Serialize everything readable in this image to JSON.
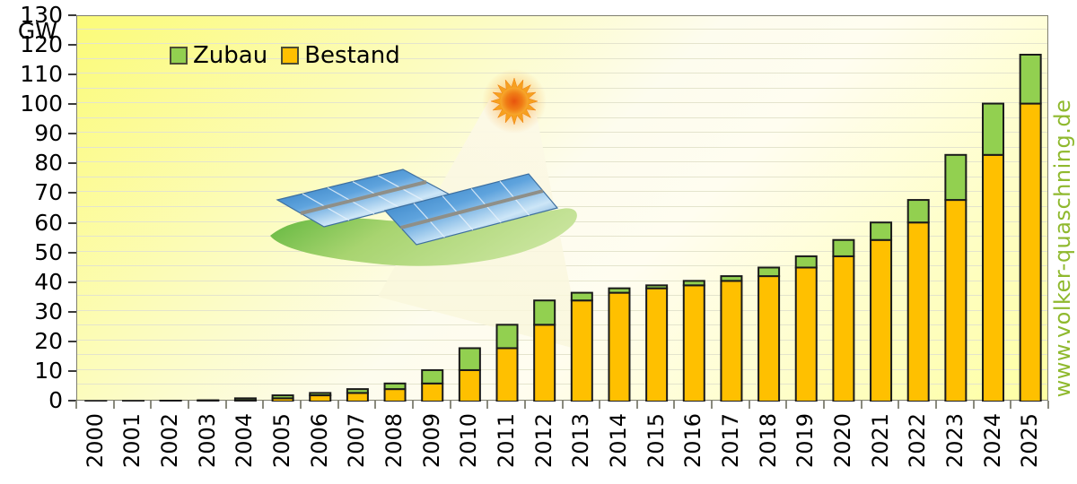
{
  "axis": {
    "unit_label": "GW"
  },
  "legend": [
    {
      "label": "Zubau",
      "color": "#92D050"
    },
    {
      "label": "Bestand",
      "color": "#FFC000"
    }
  ],
  "watermark": {
    "text": "www.volker-quaschning.de",
    "color": "#8FB92E"
  },
  "icons": {
    "sun": "sun-icon",
    "panels": "solar-panels-icon"
  },
  "colors": {
    "bar_border": "#1a1a1a",
    "plot_border": "#7f7f6f",
    "gridline": "#e4e4cd",
    "bestand": "#FFC000",
    "zubau": "#92D050"
  },
  "chart_data": {
    "type": "bar",
    "stacked": true,
    "title": "",
    "xlabel": "",
    "ylabel": "GW",
    "ylim": [
      0,
      130
    ],
    "y_tick_step": 10,
    "gridline_step": 5,
    "grid": true,
    "legend_position": "top-left",
    "x_label_rotation": -90,
    "categories": [
      "2000",
      "2001",
      "2002",
      "2003",
      "2004",
      "2005",
      "2006",
      "2007",
      "2008",
      "2009",
      "2010",
      "2011",
      "2012",
      "2013",
      "2014",
      "2015",
      "2016",
      "2017",
      "2018",
      "2019",
      "2020",
      "2021",
      "2022",
      "2023",
      "2024",
      "2025"
    ],
    "series": [
      {
        "name": "Bestand",
        "color": "#FFC000",
        "values": [
          0.08,
          0.11,
          0.19,
          0.31,
          0.44,
          1.1,
          2.1,
          2.9,
          4.2,
          6.1,
          10.6,
          18.0,
          25.9,
          34.1,
          36.7,
          38.2,
          39.2,
          40.7,
          42.3,
          45.2,
          49.0,
          54.5,
          60.4,
          68.0,
          83.2,
          100.5
        ]
      },
      {
        "name": "Zubau",
        "color": "#92D050",
        "values": [
          0.04,
          0.08,
          0.12,
          0.13,
          0.66,
          1.0,
          0.8,
          1.3,
          1.9,
          4.5,
          7.4,
          7.9,
          8.2,
          2.6,
          1.5,
          1.0,
          1.5,
          1.6,
          2.9,
          3.8,
          5.5,
          5.9,
          7.6,
          15.2,
          17.3,
          16.5
        ]
      }
    ],
    "totals": [
      0.12,
      0.19,
      0.31,
      0.44,
      1.1,
      2.1,
      2.9,
      4.2,
      6.1,
      10.6,
      18.0,
      25.9,
      34.1,
      36.7,
      38.2,
      39.2,
      40.7,
      42.3,
      45.2,
      49.0,
      54.5,
      60.4,
      68.0,
      83.2,
      100.5,
      117.0
    ],
    "y_tick_labels": [
      "0",
      "10",
      "20",
      "30",
      "40",
      "50",
      "60",
      "70",
      "80",
      "90",
      "100",
      "110",
      "120",
      "130"
    ]
  }
}
